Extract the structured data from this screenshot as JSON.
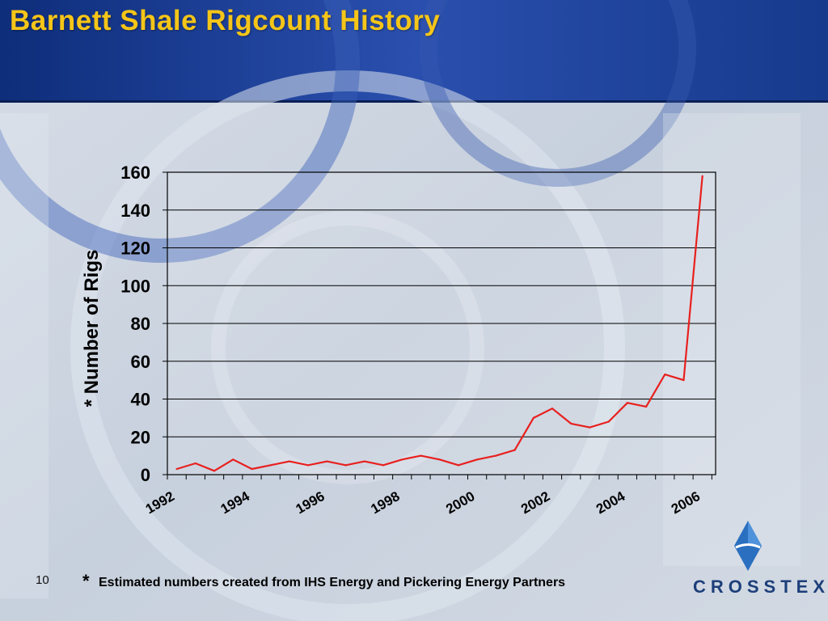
{
  "slide": {
    "title": "Barnett Shale Rigcount History",
    "number": "10",
    "footnote_mark": "*",
    "footnote": "Estimated numbers created from IHS Energy and Pickering Energy Partners",
    "logo_text": "CROSSTEX"
  },
  "colors": {
    "title": "#f5c518",
    "line": "#e8201e",
    "header": "#1a3c8c",
    "background": "#c9d2df"
  },
  "chart_data": {
    "type": "line",
    "ylabel": "* Number of Rigs",
    "ylim": [
      0,
      160
    ],
    "yticks": [
      0,
      20,
      40,
      60,
      80,
      100,
      120,
      140,
      160
    ],
    "xlim": [
      1992,
      2006.6
    ],
    "xticks": [
      1992,
      1994,
      1996,
      1998,
      2000,
      2002,
      2004,
      2006
    ],
    "xtick_labels": [
      "1992",
      "1994",
      "1996",
      "1998",
      "2000",
      "2002",
      "2004",
      "2006"
    ],
    "grid": true,
    "series": [
      {
        "x": [
          1992.25,
          1992.75,
          1993.25,
          1993.75,
          1994.25,
          1994.75,
          1995.25,
          1995.75,
          1996.25,
          1996.75,
          1997.25,
          1997.75,
          1998.25,
          1998.75,
          1999.25,
          1999.75,
          2000.25,
          2000.75,
          2001.25,
          2001.75,
          2002.25,
          2002.75,
          2003.25,
          2003.75,
          2004.25,
          2004.75,
          2005.25,
          2005.75,
          2006.25
        ],
        "y": [
          3,
          6,
          2,
          8,
          3,
          5,
          7,
          5,
          7,
          5,
          7,
          5,
          8,
          10,
          8,
          5,
          8,
          10,
          13,
          30,
          35,
          27,
          25,
          28,
          38,
          36,
          53,
          50,
          158
        ]
      }
    ]
  }
}
